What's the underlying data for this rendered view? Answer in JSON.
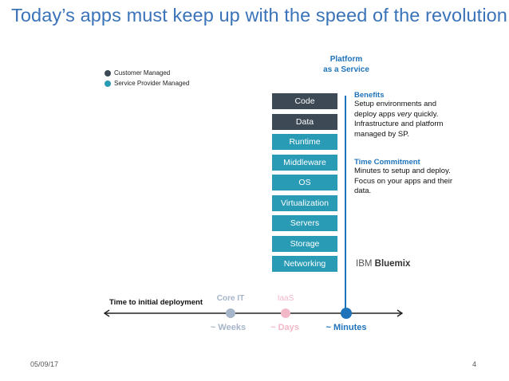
{
  "title": "Today’s apps must keep up with the speed of the revolution.",
  "legend": [
    {
      "label": "Customer Managed",
      "color": "#3d4a56"
    },
    {
      "label": "Service Provider Managed",
      "color": "#2a9bb5"
    }
  ],
  "platform": {
    "line1": "Platform",
    "line2": "as a Service"
  },
  "layers": [
    {
      "label": "Code",
      "managed": "customer"
    },
    {
      "label": "Data",
      "managed": "customer"
    },
    {
      "label": "Runtime",
      "managed": "provider"
    },
    {
      "label": "Middleware",
      "managed": "provider"
    },
    {
      "label": "OS",
      "managed": "provider"
    },
    {
      "label": "Virtualization",
      "managed": "provider"
    },
    {
      "label": "Servers",
      "managed": "provider"
    },
    {
      "label": "Storage",
      "managed": "provider"
    },
    {
      "label": "Networking",
      "managed": "provider"
    }
  ],
  "colors": {
    "customer": "#3d4a56",
    "provider": "#2a9bb5",
    "accent": "#1f73bb"
  },
  "benefits": {
    "heading": "Benefits",
    "line1": "Setup environments and",
    "line2_pre": "deploy apps ",
    "line2_em": "very",
    "line2_post": " quickly.",
    "line3": "Infrastructure and platform",
    "line4": "managed by SP."
  },
  "time_commitment": {
    "heading": "Time Commitment",
    "line1": "Minutes to setup and deploy.",
    "line2": "Focus on your apps and their",
    "line3": "data."
  },
  "brand": {
    "prefix": "IBM ",
    "name": "Bluemix"
  },
  "timeline": {
    "axis_label": "Time to initial deployment",
    "points": [
      {
        "top_label": "Core IT",
        "bottom_label": "~ Weeks",
        "color": "#a6b5c8"
      },
      {
        "top_label": "IaaS",
        "bottom_label": "~ Days",
        "color": "#f2b8c8"
      },
      {
        "top_label": "",
        "bottom_label": "~ Minutes",
        "color": "#1f73bb"
      }
    ]
  },
  "footer": {
    "date": "05/09/17",
    "page": "4"
  }
}
